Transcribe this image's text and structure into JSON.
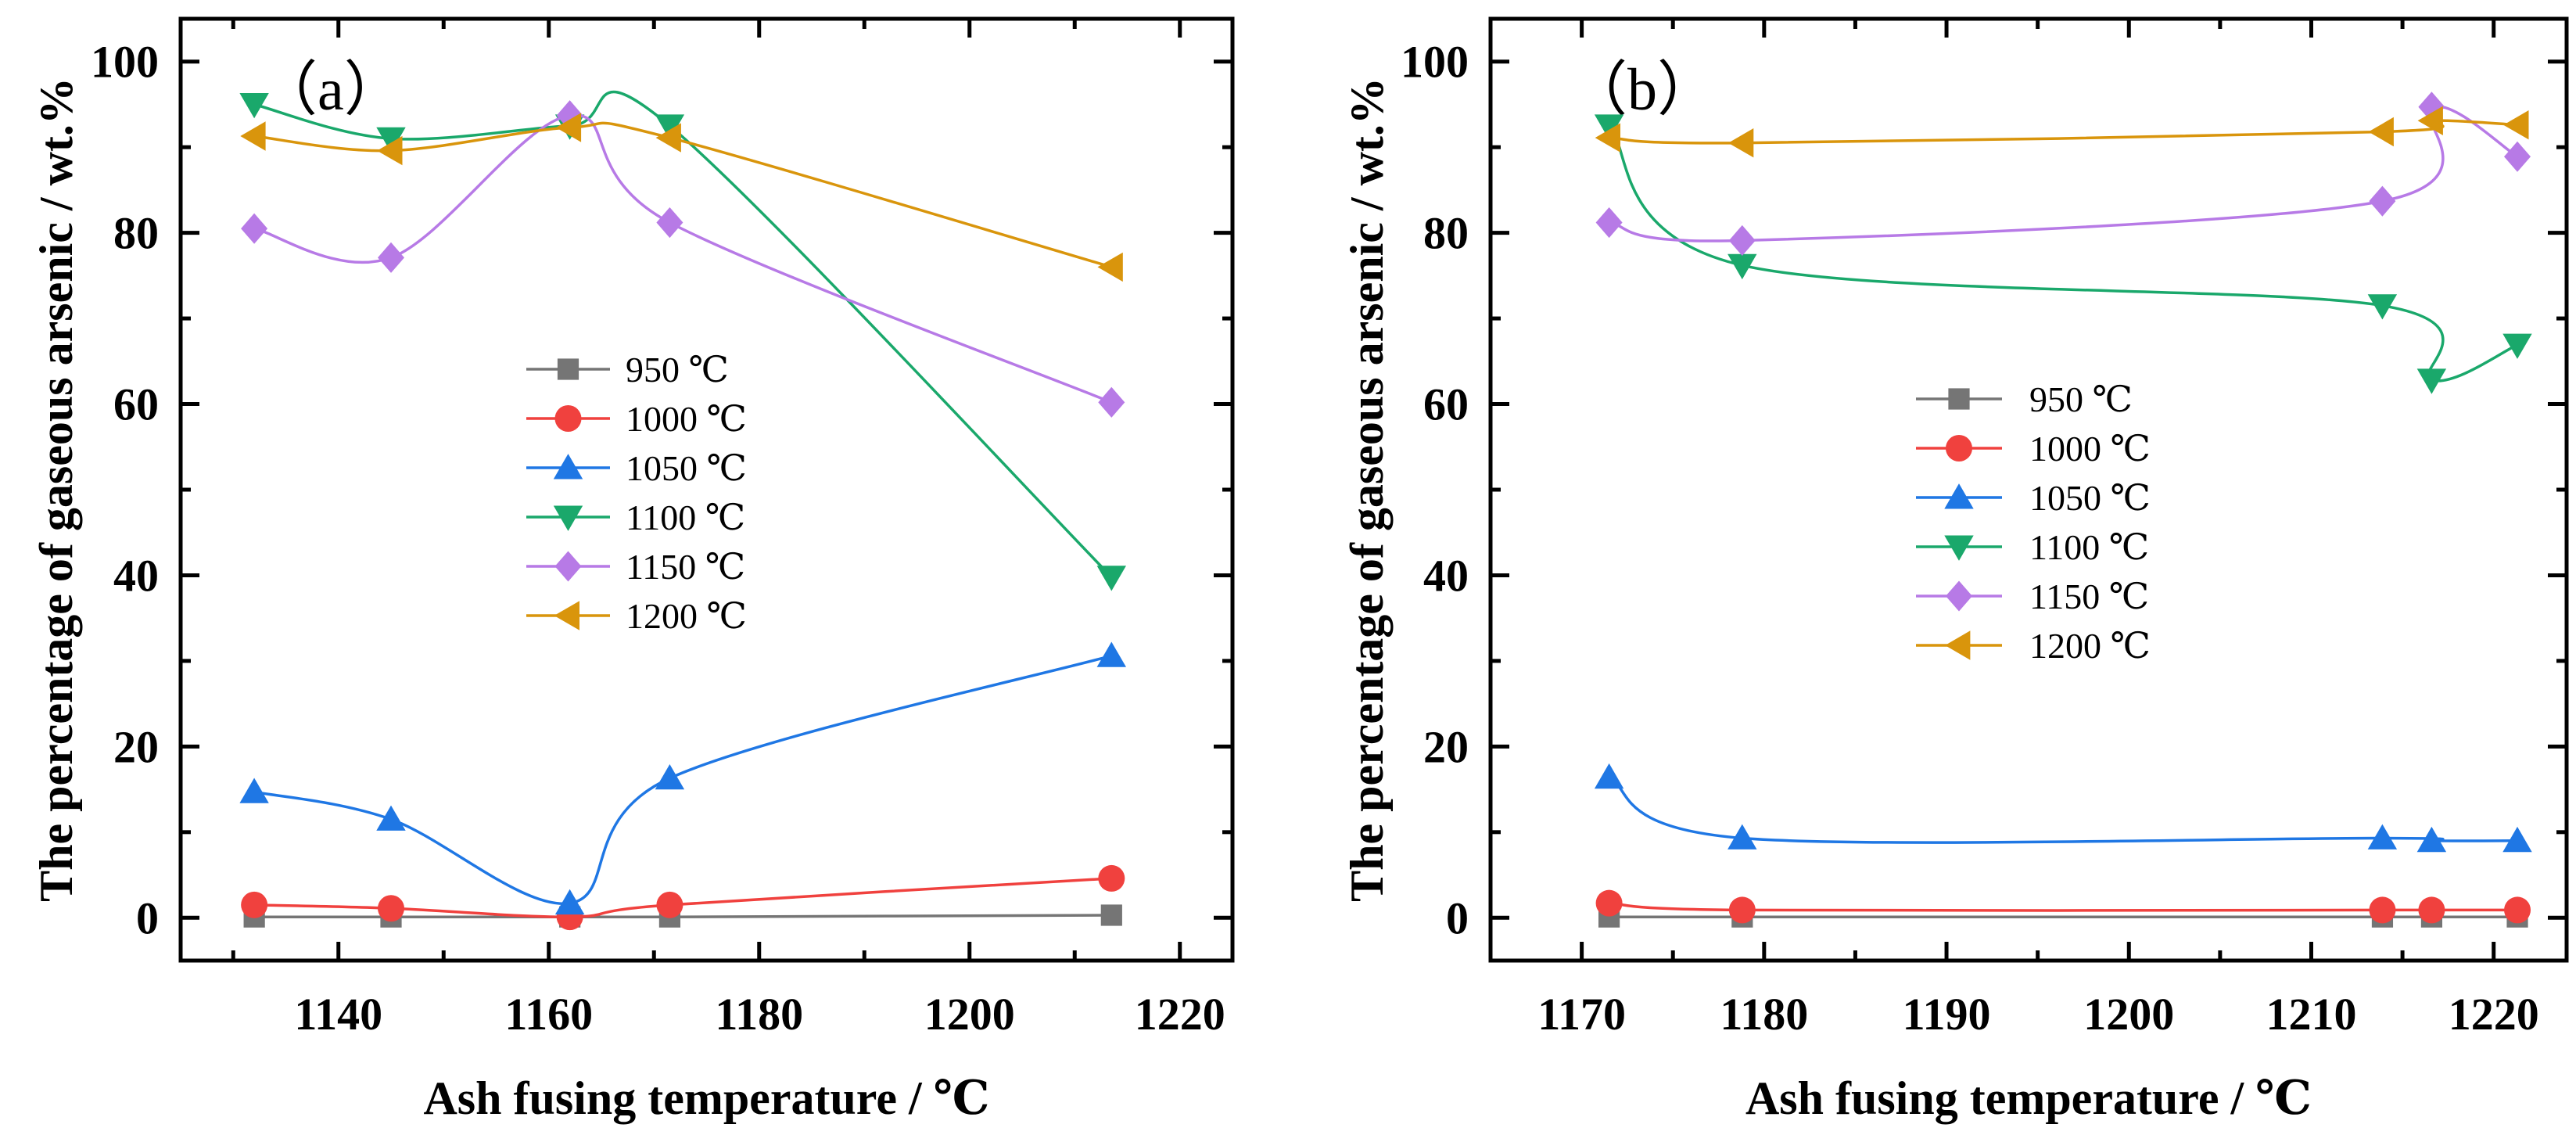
{
  "chart_data": [
    {
      "type": "line",
      "panel_label": "（a）",
      "xlabel": "Ash fusing temperature / ℃",
      "ylabel": "The percentage of gaseous arsenic / wt.%",
      "xlim": [
        1125,
        1225
      ],
      "ylim": [
        -5,
        105
      ],
      "x_ticks": [
        1140,
        1160,
        1180,
        1200,
        1220
      ],
      "x_tick_labels": [
        "1140",
        "1160",
        "1180",
        "1200",
        "1220"
      ],
      "y_ticks": [
        0,
        20,
        40,
        60,
        80,
        100
      ],
      "y_tick_labels": [
        "0",
        "20",
        "40",
        "60",
        "80",
        "100"
      ],
      "x": [
        1132,
        1145,
        1162,
        1171.5,
        1213.5
      ],
      "series": [
        {
          "name": "950 ℃",
          "color": "#757575",
          "marker": "square",
          "values": [
            0.1,
            0.1,
            0.1,
            0.1,
            0.3
          ]
        },
        {
          "name": "1000 ℃",
          "color": "#f0413e",
          "marker": "circle",
          "values": [
            1.5,
            1.1,
            0.1,
            1.5,
            4.6
          ]
        },
        {
          "name": "1050 ℃",
          "color": "#1f77e4",
          "marker": "triangle-up",
          "values": [
            14.7,
            11.5,
            1.7,
            16.3,
            30.6
          ]
        },
        {
          "name": "1100 ℃",
          "color": "#1aa86b",
          "marker": "triangle-down",
          "values": [
            95,
            91,
            92.5,
            92.5,
            39.8
          ]
        },
        {
          "name": "1150 ℃",
          "color": "#b77ae6",
          "marker": "diamond",
          "values": [
            80.5,
            77.1,
            93.7,
            81.2,
            60.2
          ]
        },
        {
          "name": "1200 ℃",
          "color": "#d9950c",
          "marker": "triangle-left",
          "values": [
            91.3,
            89.6,
            92.3,
            91.1,
            76
          ]
        }
      ]
    },
    {
      "type": "line",
      "panel_label": "（b）",
      "xlabel": "Ash fusing temperature / ℃",
      "ylabel": "The percentage of gaseous arsenic / wt.%",
      "xlim": [
        1165,
        1224
      ],
      "ylim": [
        -5,
        105
      ],
      "x_ticks": [
        1170,
        1180,
        1190,
        1200,
        1210,
        1220
      ],
      "x_tick_labels": [
        "1170",
        "1180",
        "1190",
        "1200",
        "1210",
        "1220"
      ],
      "y_ticks": [
        0,
        20,
        40,
        60,
        80,
        100
      ],
      "y_tick_labels": [
        "0",
        "20",
        "40",
        "60",
        "80",
        "100"
      ],
      "x": [
        1171.5,
        1178.8,
        1213.9,
        1216.6,
        1221.3
      ],
      "series": [
        {
          "name": "950 ℃",
          "color": "#757575",
          "marker": "square",
          "values": [
            0.1,
            0.1,
            0.1,
            0.1,
            0.1
          ]
        },
        {
          "name": "1000 ℃",
          "color": "#f0413e",
          "marker": "circle",
          "values": [
            1.7,
            0.9,
            0.9,
            0.9,
            0.9
          ]
        },
        {
          "name": "1050 ℃",
          "color": "#1f77e4",
          "marker": "triangle-up",
          "values": [
            16.4,
            9.3,
            9.3,
            9.0,
            9.0
          ]
        },
        {
          "name": "1100 ℃",
          "color": "#1aa86b",
          "marker": "triangle-down",
          "values": [
            92.5,
            76.2,
            71.5,
            62.8,
            66.9
          ]
        },
        {
          "name": "1150 ℃",
          "color": "#b77ae6",
          "marker": "diamond",
          "values": [
            81.2,
            79.1,
            83.7,
            94.7,
            88.9
          ]
        },
        {
          "name": "1200 ℃",
          "color": "#d9950c",
          "marker": "triangle-left",
          "values": [
            91.1,
            90.5,
            91.8,
            93.1,
            92.6
          ]
        }
      ]
    }
  ]
}
